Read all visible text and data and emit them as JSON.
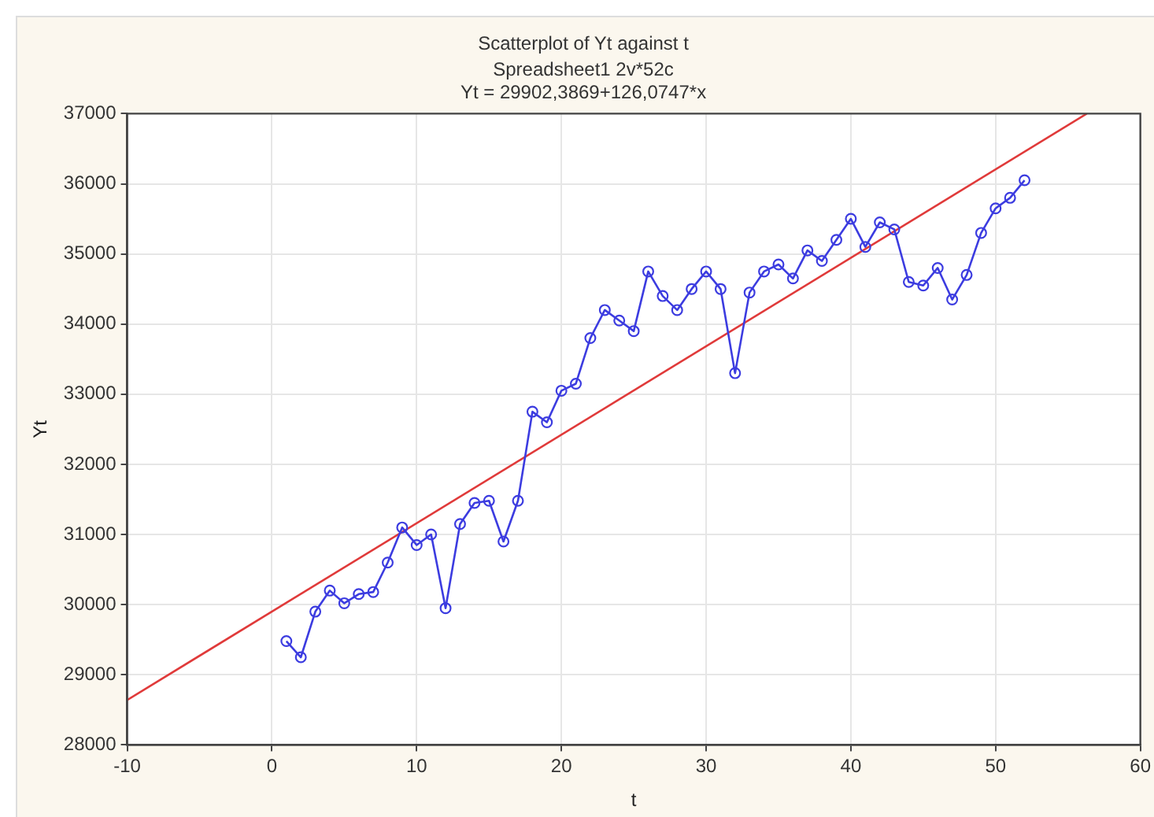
{
  "chart_data": {
    "type": "line",
    "title": "Scatterplot of Yt against t",
    "subtitle": "Spreadsheet1 2v*52c",
    "annotations": [
      "Yt = 29902,3869+126,0747*x"
    ],
    "xlabel": "t",
    "ylabel": "Yt",
    "x": [
      1,
      2,
      3,
      4,
      5,
      6,
      7,
      8,
      9,
      10,
      11,
      12,
      13,
      14,
      15,
      16,
      17,
      18,
      19,
      20,
      21,
      22,
      23,
      24,
      25,
      26,
      27,
      28,
      29,
      30,
      31,
      32,
      33,
      34,
      35,
      36,
      37,
      38,
      39,
      40,
      41,
      42,
      43,
      44,
      45,
      46,
      47,
      48,
      49,
      50,
      51,
      52
    ],
    "series": [
      {
        "color": "#3c3ce0",
        "marker": "circle",
        "values": [
          29480,
          29250,
          29900,
          30200,
          30020,
          30150,
          30180,
          30600,
          31100,
          30850,
          31000,
          29950,
          31150,
          31450,
          31480,
          30900,
          31480,
          32750,
          32600,
          33050,
          33150,
          33800,
          34200,
          34050,
          33900,
          34750,
          34400,
          34200,
          34500,
          34750,
          34500,
          33300,
          34450,
          34750,
          34850,
          34650,
          35050,
          34900,
          35200,
          35500,
          35100,
          35450,
          35350,
          34600,
          34550,
          34800,
          34350,
          34700,
          35300,
          35650,
          35800,
          36050
        ]
      },
      {
        "color": "#e03a3a",
        "marker": "none",
        "x": [
          -10,
          56.3
        ],
        "values": [
          28640,
          37000
        ]
      }
    ],
    "xlim": [
      -10,
      60
    ],
    "xticks": [
      -10,
      0,
      10,
      20,
      30,
      40,
      50,
      60
    ],
    "ylim": [
      28000,
      37000
    ],
    "yticks": [
      28000,
      29000,
      30000,
      31000,
      32000,
      33000,
      34000,
      35000,
      36000,
      37000
    ],
    "grid": true,
    "legend": false
  }
}
